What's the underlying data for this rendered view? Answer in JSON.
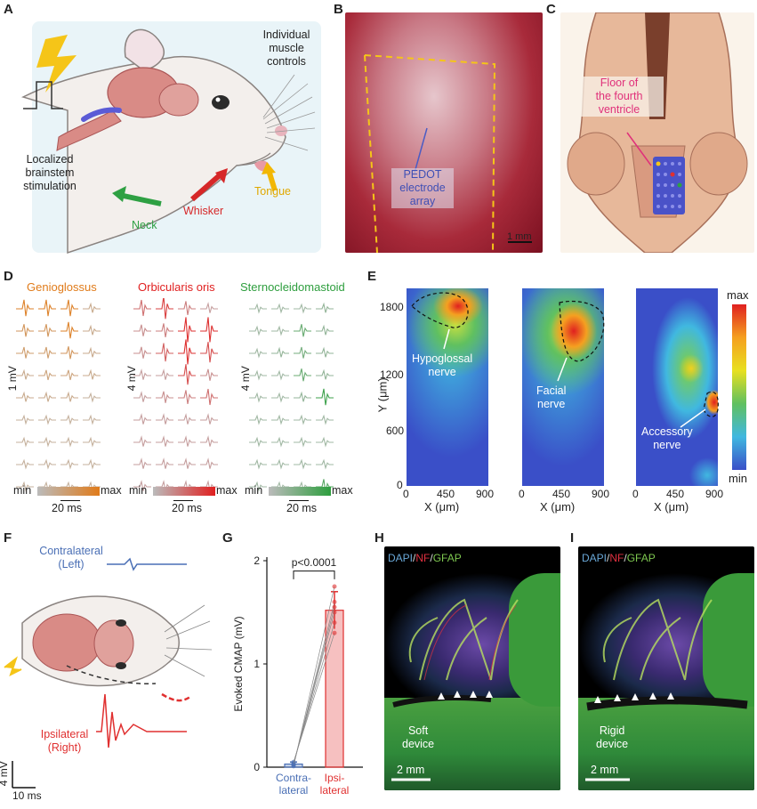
{
  "panels": {
    "A": {
      "letter": "A",
      "muscle_label_l1": "Individual",
      "muscle_label_l2": "muscle",
      "muscle_label_l3": "controls",
      "stim_label_l1": "Localized",
      "stim_label_l2": "brainstem",
      "stim_label_l3": "stimulation",
      "neck": "Neck",
      "whisker": "Whisker",
      "tongue": "Tongue",
      "colors": {
        "neck": "#2ea043",
        "whisker": "#d62728",
        "tongue": "#f2b705",
        "bolt": "#f5c518"
      }
    },
    "B": {
      "letter": "B",
      "array_l1": "PEDOT",
      "array_l2": "electrode",
      "array_l3": "array",
      "scale": "1 mm"
    },
    "C": {
      "letter": "C",
      "label_l1": "Floor of",
      "label_l2": "the fourth",
      "label_l3": "ventricle"
    },
    "D": {
      "letter": "D",
      "groups": [
        {
          "title": "Genioglossus",
          "color": "#e07b1a",
          "min": "min",
          "max": "max",
          "scale_y": "1 mV",
          "scale_x": "20 ms"
        },
        {
          "title": "Orbicularis oris",
          "color": "#e02020",
          "min": "min",
          "max": "max",
          "scale_y": "4 mV",
          "scale_x": "20 ms"
        },
        {
          "title": "Sternocleidomastoid",
          "color": "#2e9e3e",
          "min": "min",
          "max": "max",
          "scale_y": "4 mV",
          "scale_x": "20 ms"
        }
      ]
    },
    "E": {
      "letter": "E",
      "ylabel": "Y (μm)",
      "xlabel": "X (μm)",
      "yticks": [
        "0",
        "600",
        "1200",
        "1800"
      ],
      "xticks": [
        "0",
        "450",
        "900"
      ],
      "maps": [
        {
          "annotation_l1": "Hypoglossal",
          "annotation_l2": "nerve"
        },
        {
          "annotation_l1": "Facial",
          "annotation_l2": "nerve"
        },
        {
          "annotation_l1": "Accessory",
          "annotation_l2": "nerve"
        }
      ],
      "colorbar_max": "max",
      "colorbar_min": "min"
    },
    "F": {
      "letter": "F",
      "contra_l1": "Contralateral",
      "contra_l2": "(Left)",
      "ipsi_l1": "Ipsilateral",
      "ipsi_l2": "(Right)",
      "scale_y": "4 mV",
      "scale_x": "10 ms",
      "colors": {
        "contra": "#4a6fb5",
        "ipsi": "#e03030"
      }
    },
    "G": {
      "letter": "G",
      "ylabel": "Evoked CMAP (mV)",
      "yticks": [
        "0",
        "1",
        "2"
      ],
      "pvalue": "p<0.0001",
      "cat1_l1": "Contra-",
      "cat1_l2": "lateral",
      "cat2_l1": "Ipsi-",
      "cat2_l2": "lateral"
    },
    "H": {
      "letter": "H",
      "stain_dapi": "DAPI",
      "stain_nf": "NF",
      "stain_gfap": "GFAP",
      "device_l1": "Soft",
      "device_l2": "device",
      "scale": "2 mm"
    },
    "I": {
      "letter": "I",
      "stain_dapi": "DAPI",
      "stain_nf": "NF",
      "stain_gfap": "GFAP",
      "device_l1": "Rigid",
      "device_l2": "device",
      "scale": "2 mm"
    }
  },
  "chart_data": {
    "type": "bar",
    "categories": [
      "Contra-lateral",
      "Ipsi-lateral"
    ],
    "values": [
      0.03,
      1.52
    ],
    "errors": [
      0.02,
      0.18
    ],
    "points": [
      [
        0.01,
        0.02,
        0.03,
        0.04,
        0.05,
        0.02
      ],
      [
        1.75,
        1.6,
        1.5,
        1.4,
        1.3,
        1.55
      ]
    ],
    "ylabel": "Evoked CMAP (mV)",
    "ylim": [
      0,
      2
    ],
    "annotation": "p<0.0001",
    "colors": [
      "#4a6fb5",
      "#e03030"
    ]
  }
}
